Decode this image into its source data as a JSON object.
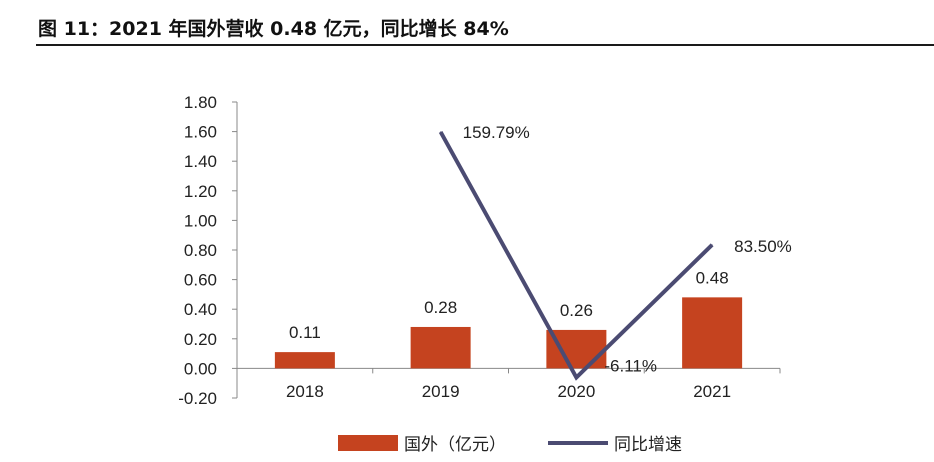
{
  "figure_title": "图 11：2021 年国外营收 0.48 亿元，同比增长 84%",
  "colors": {
    "bar": "#c5431f",
    "line": "#4b4b72",
    "axis": "#888888",
    "text": "#222222"
  },
  "chart_data": {
    "type": "bar",
    "categories": [
      "2018",
      "2019",
      "2020",
      "2021"
    ],
    "series": [
      {
        "name": "国外（亿元）",
        "kind": "bar",
        "values": [
          0.11,
          0.28,
          0.26,
          0.48
        ],
        "labels": [
          "0.11",
          "0.28",
          "0.26",
          "0.48"
        ]
      },
      {
        "name": "同比增速",
        "kind": "line",
        "values": [
          null,
          1.5979,
          -0.0611,
          0.835
        ],
        "labels": [
          "",
          "159.79%",
          "-6.11%",
          "83.50%"
        ]
      }
    ],
    "ylim": [
      -0.2,
      1.8
    ],
    "yticks": [
      -0.2,
      0.0,
      0.2,
      0.4,
      0.6,
      0.8,
      1.0,
      1.2,
      1.4,
      1.6,
      1.8
    ],
    "ytick_labels": [
      "-0.20",
      "0.00",
      "0.20",
      "0.40",
      "0.60",
      "0.80",
      "1.00",
      "1.20",
      "1.40",
      "1.60",
      "1.80"
    ],
    "legend_position": "bottom"
  }
}
